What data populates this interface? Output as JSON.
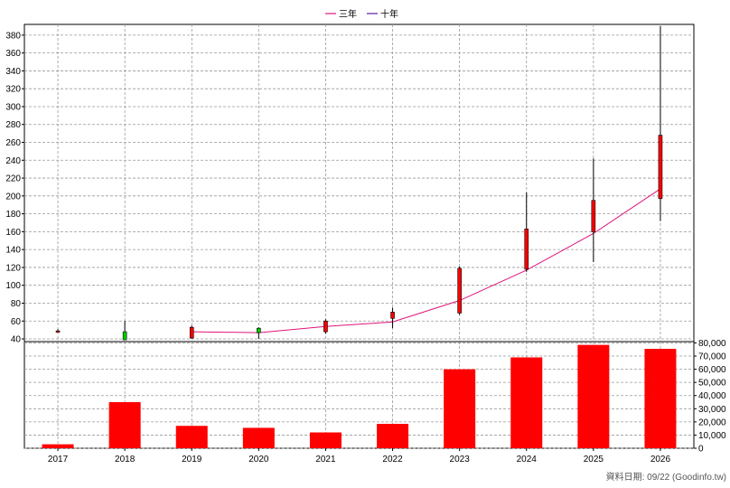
{
  "chart_data": [
    {
      "type": "candlestick",
      "legend": [
        {
          "name": "三年",
          "color": "#e0147a"
        },
        {
          "name": "十年",
          "color": "#5a1fa0"
        }
      ],
      "legend_position": "top-center",
      "categories": [
        "2017",
        "2018",
        "2019",
        "2020",
        "2021",
        "2022",
        "2023",
        "2024",
        "2025",
        "2026"
      ],
      "y_ticks": [
        "40",
        "60",
        "80",
        "100",
        "120",
        "140",
        "160",
        "180",
        "200",
        "220",
        "240",
        "260",
        "280",
        "300",
        "320",
        "340",
        "360",
        "380"
      ],
      "ylim": [
        37,
        392
      ],
      "grid": true,
      "ohlc": [
        {
          "year": "2017",
          "open": 48.5,
          "high": 51,
          "low": 47,
          "close": 49,
          "up": true
        },
        {
          "year": "2018",
          "open": 48,
          "high": 60,
          "low": 41,
          "close": 39,
          "up": false
        },
        {
          "year": "2019",
          "open": 41,
          "high": 55,
          "low": 40,
          "close": 53,
          "up": true
        },
        {
          "year": "2020",
          "open": 52,
          "high": 53,
          "low": 40,
          "close": 47,
          "up": false
        },
        {
          "year": "2021",
          "open": 48,
          "high": 62,
          "low": 46,
          "close": 60,
          "up": true
        },
        {
          "year": "2022",
          "open": 63,
          "high": 75,
          "low": 52,
          "close": 70,
          "up": true
        },
        {
          "year": "2023",
          "open": 69,
          "high": 121,
          "low": 67,
          "close": 119,
          "up": true
        },
        {
          "year": "2024",
          "open": 118,
          "high": 204,
          "low": 115,
          "close": 163,
          "up": true
        },
        {
          "year": "2025",
          "open": 160,
          "high": 242,
          "low": 126,
          "close": 195,
          "up": true
        },
        {
          "year": "2026",
          "open": 197,
          "high": 390,
          "low": 172,
          "close": 268,
          "up": true
        }
      ],
      "series": [
        {
          "name": "三年",
          "x": [
            "2019",
            "2020",
            "2021",
            "2022",
            "2023",
            "2024",
            "2025",
            "2026"
          ],
          "values": [
            48,
            47,
            54,
            59,
            83,
            117,
            158,
            208
          ],
          "color": "#e0147a"
        }
      ],
      "colors": {
        "up": "#ff0000",
        "down": "#00cc00",
        "wick": "#000000"
      }
    },
    {
      "type": "bar",
      "categories": [
        "2017",
        "2018",
        "2019",
        "2020",
        "2021",
        "2022",
        "2023",
        "2024",
        "2025",
        "2026"
      ],
      "values": [
        3000,
        35000,
        17000,
        15500,
        12000,
        18500,
        60000,
        69000,
        78500,
        75500
      ],
      "y_ticks": [
        "0",
        "10,000",
        "20,000",
        "30,000",
        "40,000",
        "50,000",
        "60,000",
        "70,000",
        "80,000"
      ],
      "ylim": [
        0,
        81000
      ],
      "bar_color": "#ff0000",
      "grid": true
    }
  ],
  "footer": {
    "source_label": "資料日期: 09/22  (Goodinfo.tw)"
  }
}
